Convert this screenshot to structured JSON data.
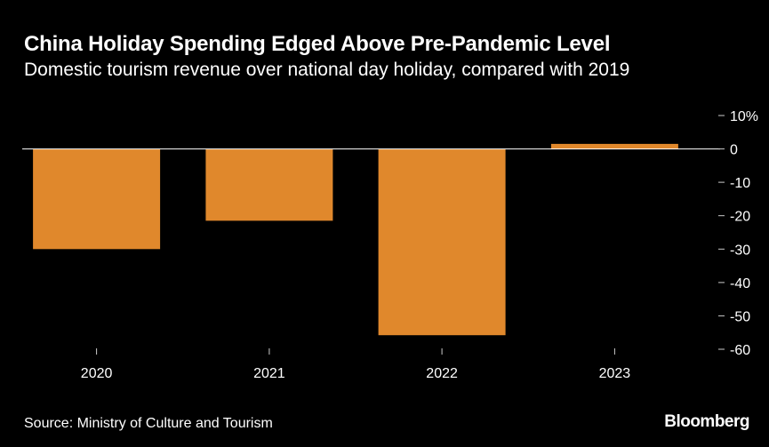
{
  "header": {
    "title": "China Holiday Spending Edged Above Pre-Pandemic Level",
    "subtitle": "Domestic tourism revenue over national day holiday, compared with 2019"
  },
  "footer": {
    "source": "Source: Ministry of Culture and Tourism",
    "brand": "Bloomberg"
  },
  "colors": {
    "bar": "#e0882c",
    "background": "#000000",
    "zero_line": "#ffffff",
    "ticks": "#cccccc"
  },
  "chart_data": {
    "type": "bar",
    "categories": [
      "2020",
      "2021",
      "2022",
      "2023"
    ],
    "values": [
      -30,
      -21.5,
      -55.8,
      1.5
    ],
    "ylim": [
      -60,
      10
    ],
    "y_ticks": [
      10,
      0,
      -10,
      -20,
      -30,
      -40,
      -50,
      -60
    ],
    "y_tick_labels": [
      "10%",
      "0",
      "-10",
      "-20",
      "-30",
      "-40",
      "-50",
      "-60"
    ],
    "y_axis_side": "right",
    "grid": false
  }
}
